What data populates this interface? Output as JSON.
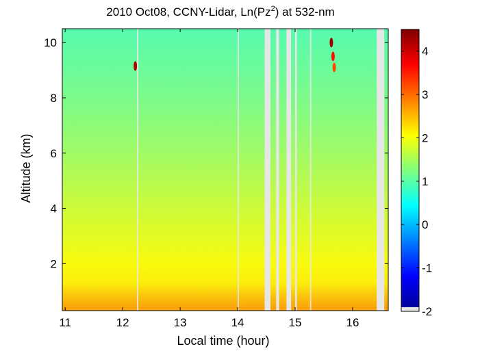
{
  "chart_data": {
    "type": "heatmap",
    "title": {
      "prefix": "2010 Oct08, CCNY-Lidar, Ln(Pz",
      "superscript": "2",
      "suffix": ") at 532-nm"
    },
    "xlabel": "Local time (hour)",
    "ylabel": "Altitude (km)",
    "xlim": [
      10.95,
      16.62
    ],
    "ylim": [
      0.3,
      10.5
    ],
    "x_ticks": [
      11,
      12,
      13,
      14,
      15,
      16
    ],
    "y_ticks": [
      2,
      4,
      6,
      8,
      10
    ],
    "colorbar": {
      "range": [
        -2,
        4.5
      ],
      "ticks": [
        -2,
        -1,
        0,
        1,
        2,
        3,
        4
      ],
      "colormap": "jet",
      "missing_color": "#e6e6e6"
    },
    "altitude_profile": [
      {
        "altitude": 0.3,
        "value": 2.7
      },
      {
        "altitude": 0.8,
        "value": 2.45
      },
      {
        "altitude": 1.3,
        "value": 2.15
      },
      {
        "altitude": 2.0,
        "value": 2.05
      },
      {
        "altitude": 3.0,
        "value": 1.9
      },
      {
        "altitude": 4.0,
        "value": 1.75
      },
      {
        "altitude": 6.0,
        "value": 1.45
      },
      {
        "altitude": 8.0,
        "value": 1.2
      },
      {
        "altitude": 10.5,
        "value": 0.95
      }
    ],
    "data_gaps": [
      {
        "start": 12.25,
        "end": 12.27
      },
      {
        "start": 14.0,
        "end": 14.02
      },
      {
        "start": 14.47,
        "end": 14.57
      },
      {
        "start": 14.67,
        "end": 14.72
      },
      {
        "start": 14.85,
        "end": 14.93
      },
      {
        "start": 15.0,
        "end": 15.03
      },
      {
        "start": 15.26,
        "end": 15.28
      },
      {
        "start": 16.42,
        "end": 16.55
      }
    ],
    "features": [
      {
        "time": 12.22,
        "altitude": 9.15,
        "value": 4.2
      },
      {
        "time": 15.63,
        "altitude": 10.0,
        "value": 4.3
      },
      {
        "time": 15.66,
        "altitude": 9.5,
        "value": 3.6
      },
      {
        "time": 15.68,
        "altitude": 9.1,
        "value": 3.2
      }
    ]
  }
}
